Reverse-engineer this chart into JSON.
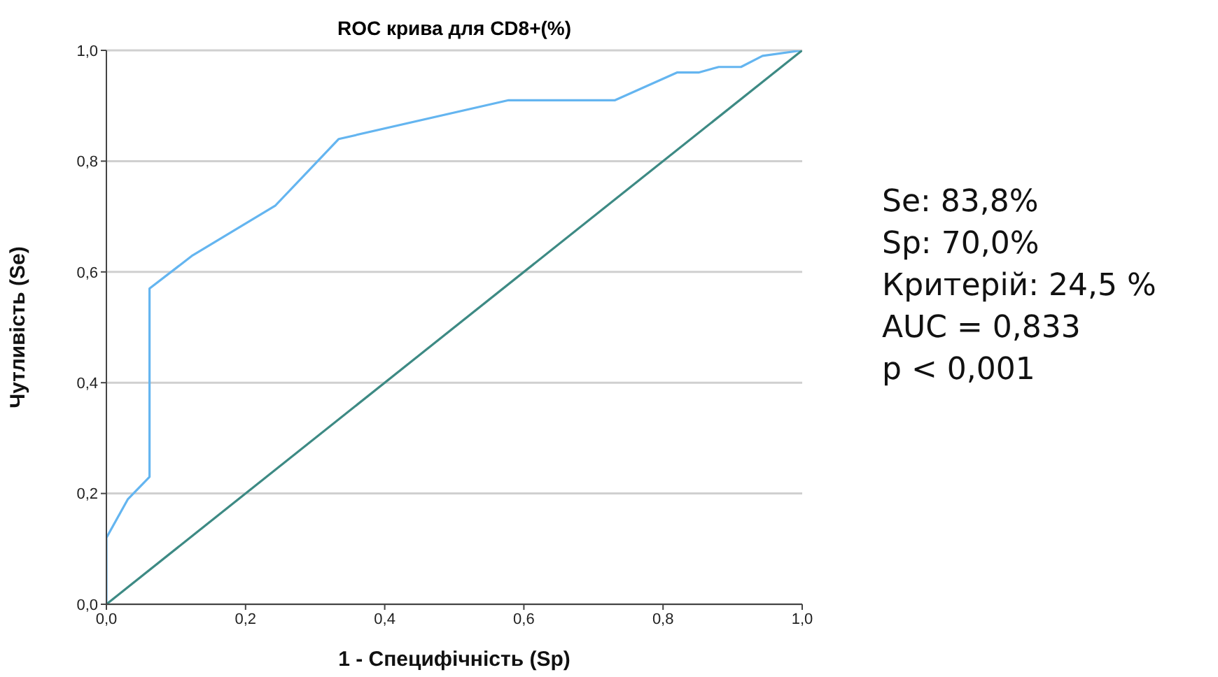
{
  "chart_data": {
    "type": "line",
    "title": "ROC крива для CD8+(%)",
    "xlabel": "1 - Специфічність (Sp)",
    "ylabel": "Чутливість (Se)",
    "series": [
      {
        "color": "#64b5f0",
        "x": [
          0,
          0,
          0.031,
          0.062,
          0.062,
          0.124,
          0.243,
          0.334,
          0.578,
          0.731,
          0.82,
          0.851,
          0.88,
          0.912,
          0.943,
          1
        ],
        "values": [
          0,
          0.12,
          0.19,
          0.23,
          0.57,
          0.63,
          0.72,
          0.84,
          0.91,
          0.91,
          0.96,
          0.96,
          0.97,
          0.97,
          0.99,
          1
        ]
      },
      {
        "color": "#3d8a84",
        "x": [
          0,
          1
        ],
        "values": [
          0,
          1
        ]
      }
    ],
    "xlim": [
      0,
      1
    ],
    "ylim": [
      0,
      1
    ],
    "xticks": [
      {
        "value": 0,
        "label": "0,0"
      },
      {
        "value": 0.2,
        "label": "0,2"
      },
      {
        "value": 0.4,
        "label": "0,4"
      },
      {
        "value": 0.6,
        "label": "0,6"
      },
      {
        "value": 0.8,
        "label": "0,8"
      },
      {
        "value": 1,
        "label": "1,0"
      }
    ],
    "yticks": [
      {
        "value": 0,
        "label": "0,0"
      },
      {
        "value": 0.2,
        "label": "0,2"
      },
      {
        "value": 0.4,
        "label": "0,4"
      },
      {
        "value": 0.6,
        "label": "0,6"
      },
      {
        "value": 0.8,
        "label": "0,8"
      },
      {
        "value": 1,
        "label": "1,0"
      }
    ],
    "grid": "y",
    "marker": "none",
    "line_style": "solid",
    "annotations": [
      "Se: 83,8%",
      "Sp: 70,0%",
      "Критерій: 24,5 %",
      "AUC = 0,833",
      "p < 0,001"
    ]
  }
}
